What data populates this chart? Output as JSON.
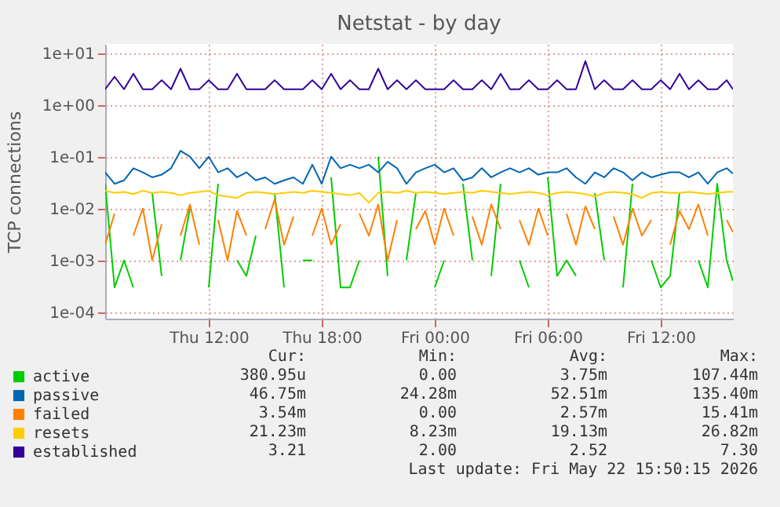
{
  "chart_data": {
    "type": "line",
    "title": "Netstat - by day",
    "ylabel": "TCP connections",
    "log": "y",
    "grid": true,
    "legend": "bottom left",
    "marker": "none",
    "line_style": "solid",
    "xlim": [
      "2026-05-21T06:30",
      "2026-05-22T15:50"
    ],
    "xticks": [
      {
        "value": "2026-05-21T12:00",
        "label": "Thu 12:00"
      },
      {
        "value": "2026-05-21T18:00",
        "label": "Thu 18:00"
      },
      {
        "value": "2026-05-22T00:00",
        "label": "Fri 00:00"
      },
      {
        "value": "2026-05-22T06:00",
        "label": "Fri 06:00"
      },
      {
        "value": "2026-05-22T12:00",
        "label": "Fri 12:00"
      }
    ],
    "ylim": [
      7.5e-05,
      15
    ],
    "yticks": [
      {
        "value": 0.0001,
        "label": "1e-04"
      },
      {
        "value": 0.001,
        "label": "1e-03"
      },
      {
        "value": 0.01,
        "label": "1e-02"
      },
      {
        "value": 0.1,
        "label": "1e-01"
      },
      {
        "value": 1,
        "label": "1e+00"
      },
      {
        "value": 10,
        "label": "1e+01"
      }
    ],
    "x": [
      "2026-05-21T06:30",
      "2026-05-21T07:00",
      "2026-05-21T07:30",
      "2026-05-21T08:00",
      "2026-05-21T08:30",
      "2026-05-21T09:00",
      "2026-05-21T09:30",
      "2026-05-21T10:00",
      "2026-05-21T10:30",
      "2026-05-21T11:00",
      "2026-05-21T11:30",
      "2026-05-21T12:00",
      "2026-05-21T12:30",
      "2026-05-21T13:00",
      "2026-05-21T13:30",
      "2026-05-21T14:00",
      "2026-05-21T14:30",
      "2026-05-21T15:00",
      "2026-05-21T15:30",
      "2026-05-21T16:00",
      "2026-05-21T16:30",
      "2026-05-21T17:00",
      "2026-05-21T17:30",
      "2026-05-21T18:00",
      "2026-05-21T18:30",
      "2026-05-21T19:00",
      "2026-05-21T19:30",
      "2026-05-21T20:00",
      "2026-05-21T20:30",
      "2026-05-21T21:00",
      "2026-05-21T21:30",
      "2026-05-21T22:00",
      "2026-05-21T22:30",
      "2026-05-21T23:00",
      "2026-05-21T23:30",
      "2026-05-22T00:00",
      "2026-05-22T00:30",
      "2026-05-22T01:00",
      "2026-05-22T01:30",
      "2026-05-22T02:00",
      "2026-05-22T02:30",
      "2026-05-22T03:00",
      "2026-05-22T03:30",
      "2026-05-22T04:00",
      "2026-05-22T04:30",
      "2026-05-22T05:00",
      "2026-05-22T05:30",
      "2026-05-22T06:00",
      "2026-05-22T06:30",
      "2026-05-22T07:00",
      "2026-05-22T07:30",
      "2026-05-22T08:00",
      "2026-05-22T08:30",
      "2026-05-22T09:00",
      "2026-05-22T09:30",
      "2026-05-22T10:00",
      "2026-05-22T10:30",
      "2026-05-22T11:00",
      "2026-05-22T11:30",
      "2026-05-22T12:00",
      "2026-05-22T12:30",
      "2026-05-22T13:00",
      "2026-05-22T13:30",
      "2026-05-22T14:00",
      "2026-05-22T14:30",
      "2026-05-22T15:00",
      "2026-05-22T15:30",
      "2026-05-22T15:50"
    ],
    "series": [
      {
        "name": "active",
        "color": "#00cc00",
        "values": [
          0.03,
          0.0003,
          0.001,
          0.0003,
          null,
          0.02,
          0.0005,
          null,
          0.001,
          0.01,
          null,
          0.0003,
          0.03,
          null,
          0.001,
          0.0005,
          0.003,
          null,
          0.02,
          0.0003,
          null,
          0.001,
          0.001,
          null,
          0.04,
          0.0003,
          0.0003,
          0.001,
          null,
          0.1,
          0.0005,
          null,
          0.001,
          0.02,
          null,
          0.0003,
          0.001,
          null,
          0.03,
          0.001,
          null,
          0.0005,
          0.03,
          null,
          0.001,
          0.0003,
          null,
          0.04,
          0.0005,
          0.001,
          0.0005,
          null,
          0.02,
          0.001,
          null,
          0.0003,
          0.03,
          null,
          0.001,
          0.0003,
          0.0005,
          0.02,
          null,
          0.001,
          0.0003,
          0.03,
          0.001,
          0.0004
        ]
      },
      {
        "name": "passive",
        "color": "#0066b3",
        "values": [
          0.05,
          0.03,
          0.035,
          0.06,
          0.05,
          0.04,
          0.045,
          0.06,
          0.13,
          0.1,
          0.06,
          0.1,
          0.05,
          0.06,
          0.04,
          0.05,
          0.035,
          0.04,
          0.03,
          0.035,
          0.04,
          0.03,
          0.07,
          0.03,
          0.1,
          0.06,
          0.07,
          0.06,
          0.07,
          0.05,
          0.08,
          0.06,
          0.03,
          0.05,
          0.06,
          0.07,
          0.05,
          0.06,
          0.035,
          0.04,
          0.06,
          0.04,
          0.05,
          0.06,
          0.05,
          0.06,
          0.045,
          0.05,
          0.05,
          0.06,
          0.04,
          0.03,
          0.05,
          0.04,
          0.06,
          0.05,
          0.035,
          0.05,
          0.04,
          0.045,
          0.05,
          0.05,
          0.04,
          0.05,
          0.03,
          0.05,
          0.06,
          0.047
        ]
      },
      {
        "name": "failed",
        "color": "#ff8000",
        "values": [
          0.002,
          0.008,
          null,
          0.003,
          0.01,
          0.001,
          0.005,
          null,
          0.003,
          0.012,
          0.002,
          null,
          0.006,
          0.001,
          0.009,
          0.003,
          null,
          0.004,
          0.015,
          0.002,
          0.007,
          null,
          0.003,
          0.01,
          0.002,
          0.005,
          null,
          0.008,
          0.003,
          0.012,
          0.001,
          0.006,
          null,
          0.004,
          0.009,
          0.002,
          0.01,
          0.003,
          null,
          0.007,
          0.002,
          0.012,
          0.004,
          null,
          0.006,
          0.002,
          0.01,
          0.003,
          null,
          0.008,
          0.002,
          0.011,
          0.004,
          null,
          0.007,
          0.002,
          0.01,
          0.003,
          0.006,
          null,
          0.002,
          0.009,
          0.004,
          0.012,
          0.003,
          null,
          0.006,
          0.0035
        ]
      },
      {
        "name": "resets",
        "color": "#ffcc00",
        "values": [
          0.022,
          0.02,
          0.021,
          0.019,
          0.022,
          0.02,
          0.021,
          0.02,
          0.018,
          0.02,
          0.021,
          0.022,
          0.018,
          0.017,
          0.016,
          0.02,
          0.021,
          0.02,
          0.019,
          0.02,
          0.021,
          0.02,
          0.022,
          0.021,
          0.02,
          0.019,
          0.018,
          0.02,
          0.013,
          0.02,
          0.021,
          0.02,
          0.022,
          0.02,
          0.021,
          0.02,
          0.019,
          0.02,
          0.021,
          0.02,
          0.022,
          0.021,
          0.02,
          0.019,
          0.02,
          0.021,
          0.02,
          0.018,
          0.02,
          0.021,
          0.02,
          0.019,
          0.017,
          0.02,
          0.021,
          0.02,
          0.019,
          0.016,
          0.02,
          0.021,
          0.02,
          0.02,
          0.021,
          0.02,
          0.019,
          0.02,
          0.021,
          0.021
        ]
      },
      {
        "name": "established",
        "color": "#330099",
        "values": [
          2,
          3.5,
          2,
          4,
          2,
          2,
          3,
          2,
          5,
          2,
          2,
          3,
          2,
          2,
          4,
          2,
          2,
          2,
          3,
          2,
          2,
          2,
          3,
          2,
          4,
          2,
          3,
          2,
          2,
          5,
          2,
          3,
          2,
          3,
          2,
          2,
          2,
          3,
          2,
          2,
          3,
          2,
          4,
          2,
          2,
          3,
          2,
          2,
          3,
          2,
          2,
          7,
          2,
          3,
          2,
          2,
          3,
          2,
          2,
          3,
          2,
          4,
          2,
          3,
          2,
          2,
          3,
          2
        ]
      }
    ],
    "annotations": [
      "Cur:",
      "Min:",
      "Avg:",
      "Max:",
      "380.95u",
      "0.00",
      "3.75m",
      "107.44m",
      "46.75m",
      "24.28m",
      "52.51m",
      "135.40m",
      "3.54m",
      "0.00",
      "2.57m",
      "15.41m",
      "21.23m",
      "8.23m",
      "19.13m",
      "26.82m",
      "3.21",
      "2.00",
      "2.52",
      "7.30",
      "Last update: Fri May 22 15:50:15 2026"
    ]
  }
}
